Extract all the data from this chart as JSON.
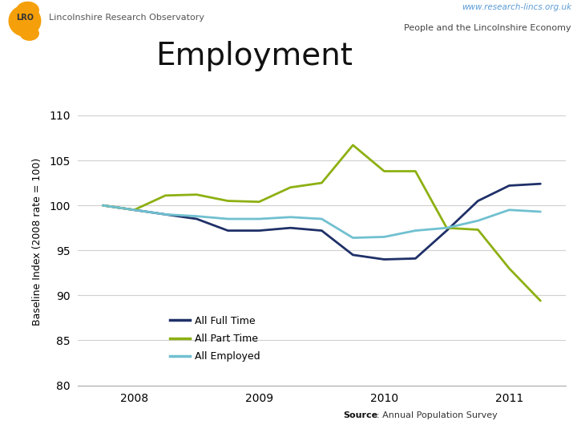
{
  "title": "Employment",
  "subtitle_right": "People and the Lincolnshire Economy",
  "header_left": "Lincolnshire Research Observatory",
  "header_url": "www.research-lincs.org.uk",
  "ylabel": "Baseline Index (2008 rate = 100)",
  "source_bold": "Source",
  "source_rest": ": Annual Population Survey",
  "ylim": [
    80,
    112
  ],
  "yticks": [
    80,
    85,
    90,
    95,
    100,
    105,
    110
  ],
  "background_color": "#ffffff",
  "plot_bg_color": "#ffffff",
  "header_blue_color": "#5b9bd5",
  "header_green_color": "#9dc544",
  "series": [
    {
      "label": "All Full Time",
      "color": "#1f3068",
      "linewidth": 2.0,
      "x": [
        2007.75,
        2008.0,
        2008.25,
        2008.5,
        2008.75,
        2009.0,
        2009.25,
        2009.5,
        2009.75,
        2010.0,
        2010.25,
        2010.5,
        2010.75,
        2011.0,
        2011.25
      ],
      "y": [
        100.0,
        99.5,
        99.0,
        98.5,
        97.2,
        97.2,
        97.5,
        97.2,
        94.5,
        94.0,
        94.1,
        97.2,
        100.5,
        102.2,
        102.4
      ]
    },
    {
      "label": "All Part Time",
      "color": "#8db012",
      "linewidth": 2.0,
      "x": [
        2007.75,
        2008.0,
        2008.25,
        2008.5,
        2008.75,
        2009.0,
        2009.25,
        2009.5,
        2009.75,
        2010.0,
        2010.25,
        2010.5,
        2010.75,
        2011.0,
        2011.25
      ],
      "y": [
        100.0,
        99.5,
        101.1,
        101.2,
        100.5,
        100.4,
        102.0,
        102.5,
        106.7,
        103.8,
        103.8,
        97.5,
        97.3,
        93.0,
        89.4
      ]
    },
    {
      "label": "All Employed",
      "color": "#70c0d0",
      "linewidth": 2.0,
      "x": [
        2007.75,
        2008.0,
        2008.25,
        2008.5,
        2008.75,
        2009.0,
        2009.25,
        2009.5,
        2009.75,
        2010.0,
        2010.25,
        2010.5,
        2010.75,
        2011.0,
        2011.25
      ],
      "y": [
        100.0,
        99.5,
        99.0,
        98.8,
        98.5,
        98.5,
        98.7,
        98.5,
        96.4,
        96.5,
        97.2,
        97.5,
        98.3,
        99.5,
        99.3
      ]
    }
  ],
  "xticks": [
    2008,
    2009,
    2010,
    2011
  ],
  "xlim": [
    2007.55,
    2011.45
  ],
  "logo_color": "#f5a00a",
  "logo_shadow": "#c87800"
}
